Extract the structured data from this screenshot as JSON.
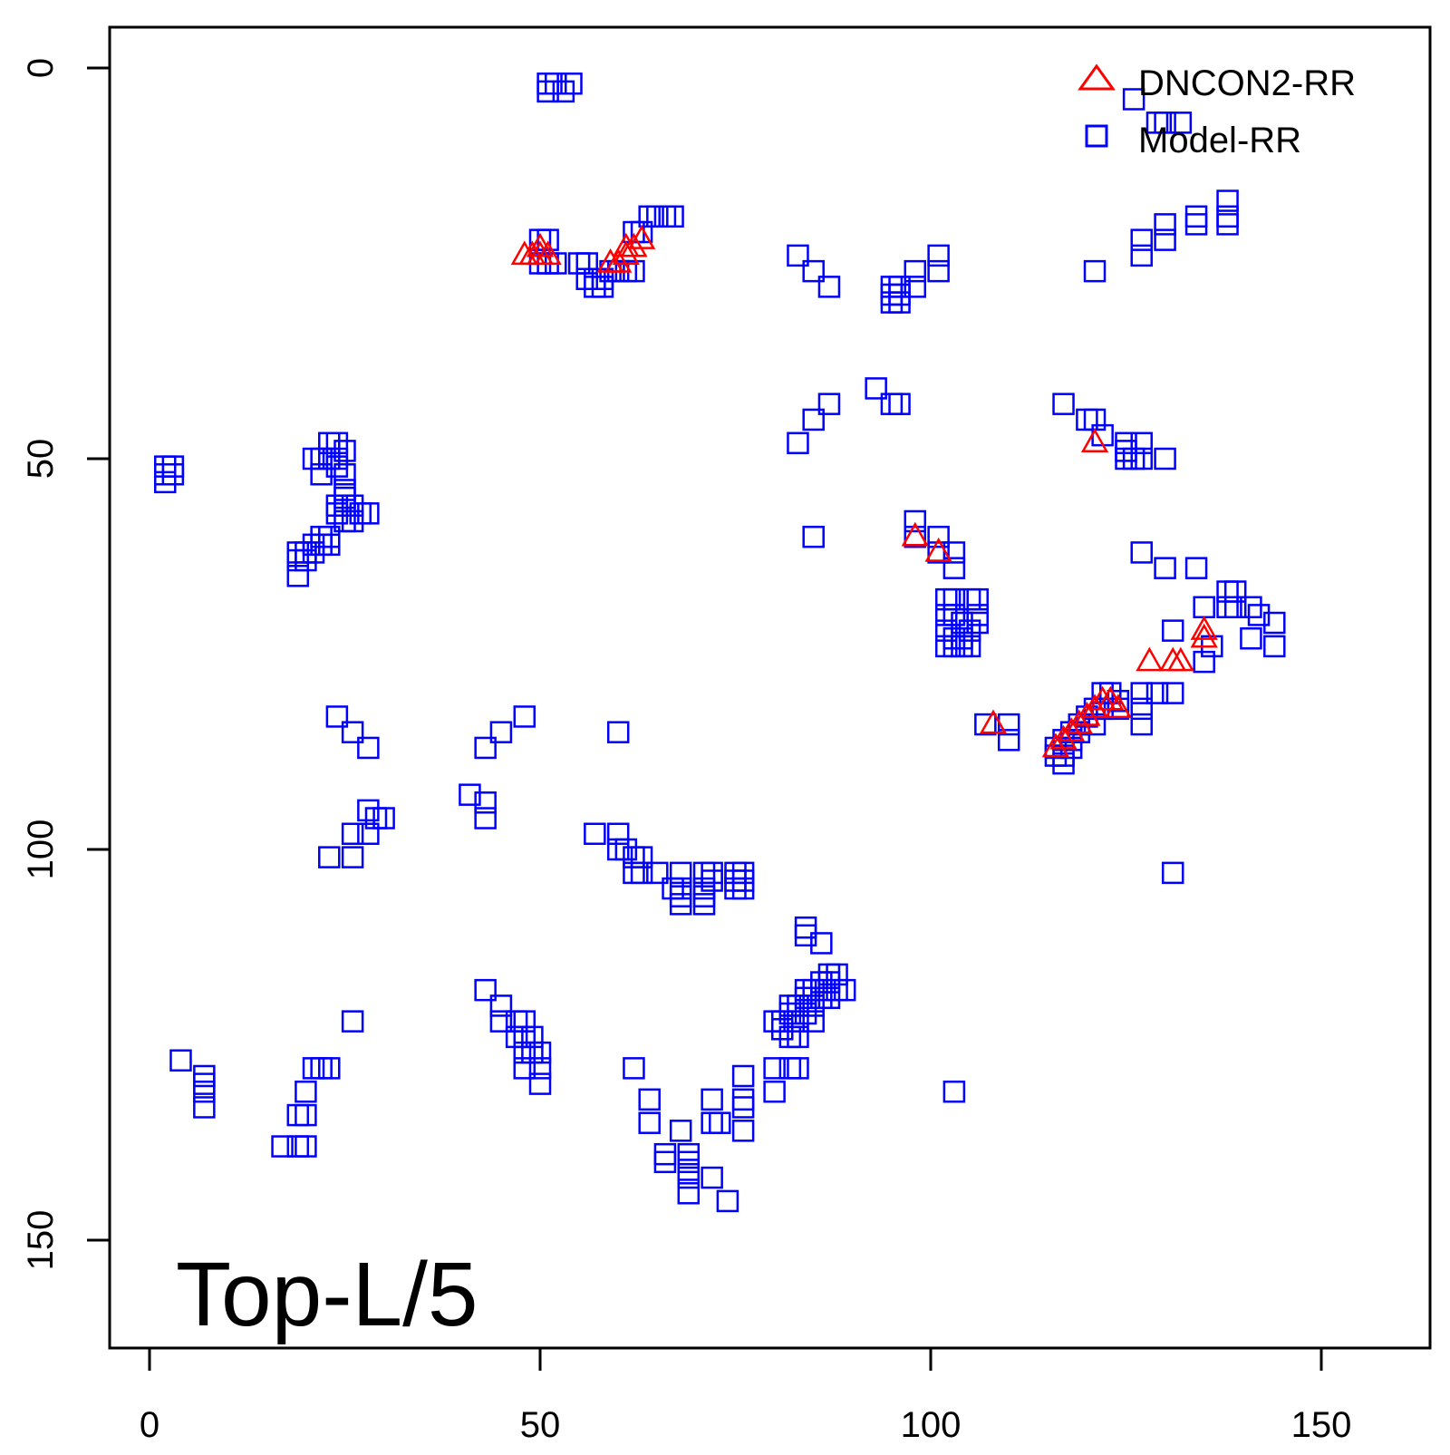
{
  "chart_data": {
    "type": "scatter",
    "title": "",
    "xlabel": "",
    "ylabel": "",
    "xlim": [
      -5,
      164
    ],
    "ylim": [
      -5,
      164
    ],
    "y_axis_inverted": true,
    "grid": false,
    "x_ticks": [
      "0",
      "50",
      "100",
      "150"
    ],
    "y_ticks": [
      "0",
      "50",
      "100",
      "150"
    ],
    "legend_position": "top-right",
    "panel_label": "Top-L/5",
    "series": [
      {
        "name": "DNCON2-RR",
        "marker": "triangle",
        "color": "#ff0000",
        "points": [
          [
            48,
            24
          ],
          [
            49,
            24
          ],
          [
            50,
            24
          ],
          [
            51,
            24
          ],
          [
            50,
            23
          ],
          [
            59,
            25
          ],
          [
            60,
            25
          ],
          [
            61,
            24
          ],
          [
            62,
            23
          ],
          [
            63,
            22
          ],
          [
            61,
            23
          ],
          [
            121,
            48
          ],
          [
            98,
            60
          ],
          [
            101,
            62
          ],
          [
            108,
            84
          ],
          [
            116,
            87
          ],
          [
            117,
            86
          ],
          [
            118,
            85
          ],
          [
            119,
            84
          ],
          [
            120,
            83
          ],
          [
            121,
            82
          ],
          [
            122,
            81
          ],
          [
            123,
            81
          ],
          [
            124,
            82
          ],
          [
            128,
            76
          ],
          [
            132,
            76
          ],
          [
            131,
            76
          ],
          [
            135,
            72
          ],
          [
            135,
            73
          ]
        ]
      },
      {
        "name": "Model-RR",
        "marker": "square",
        "color": "#0000ff",
        "points": [
          [
            2,
            51
          ],
          [
            2,
            52
          ],
          [
            2,
            53
          ],
          [
            3,
            51
          ],
          [
            3,
            52
          ],
          [
            4,
            127
          ],
          [
            7,
            129
          ],
          [
            7,
            130
          ],
          [
            7,
            131
          ],
          [
            7,
            133
          ],
          [
            17,
            138
          ],
          [
            19,
            134
          ],
          [
            19,
            138
          ],
          [
            20,
            134
          ],
          [
            20,
            138
          ],
          [
            19,
            62
          ],
          [
            19,
            63
          ],
          [
            19,
            65
          ],
          [
            20,
            62
          ],
          [
            20,
            63
          ],
          [
            21,
            61
          ],
          [
            21,
            62
          ],
          [
            22,
            60
          ],
          [
            22,
            61
          ],
          [
            23,
            60
          ],
          [
            23,
            61
          ],
          [
            21,
            50
          ],
          [
            22,
            50
          ],
          [
            22,
            52
          ],
          [
            23,
            48
          ],
          [
            23,
            50
          ],
          [
            24,
            48
          ],
          [
            24,
            50
          ],
          [
            24,
            51
          ],
          [
            25,
            49
          ],
          [
            25,
            52
          ],
          [
            25,
            54
          ],
          [
            24,
            56
          ],
          [
            24,
            57
          ],
          [
            25,
            55
          ],
          [
            25,
            56
          ],
          [
            25,
            58
          ],
          [
            26,
            56
          ],
          [
            26,
            58
          ],
          [
            27,
            57
          ],
          [
            28,
            57
          ],
          [
            20,
            131
          ],
          [
            21,
            128
          ],
          [
            22,
            128
          ],
          [
            23,
            128
          ],
          [
            26,
            122
          ],
          [
            24,
            83
          ],
          [
            26,
            85
          ],
          [
            28,
            87
          ],
          [
            23,
            101
          ],
          [
            26,
            101
          ],
          [
            26,
            98
          ],
          [
            28,
            98
          ],
          [
            28,
            95
          ],
          [
            29,
            96
          ],
          [
            30,
            96
          ],
          [
            41,
            93
          ],
          [
            43,
            94
          ],
          [
            43,
            96
          ],
          [
            43,
            87
          ],
          [
            45,
            85
          ],
          [
            48,
            83
          ],
          [
            43,
            118
          ],
          [
            45,
            120
          ],
          [
            45,
            122
          ],
          [
            47,
            122
          ],
          [
            48,
            122
          ],
          [
            47,
            124
          ],
          [
            48,
            124
          ],
          [
            49,
            124
          ],
          [
            48,
            126
          ],
          [
            49,
            126
          ],
          [
            50,
            126
          ],
          [
            48,
            128
          ],
          [
            50,
            128
          ],
          [
            50,
            130
          ],
          [
            50,
            22
          ],
          [
            51,
            22
          ],
          [
            50,
            25
          ],
          [
            51,
            25
          ],
          [
            52,
            25
          ],
          [
            55,
            25
          ],
          [
            56,
            25
          ],
          [
            56,
            27
          ],
          [
            57,
            27
          ],
          [
            58,
            27
          ],
          [
            57,
            28
          ],
          [
            58,
            28
          ],
          [
            51,
            2
          ],
          [
            51,
            3
          ],
          [
            52,
            2
          ],
          [
            53,
            3
          ],
          [
            54,
            2
          ],
          [
            59,
            26
          ],
          [
            60,
            26
          ],
          [
            61,
            26
          ],
          [
            62,
            26
          ],
          [
            62,
            21
          ],
          [
            63,
            21
          ],
          [
            64,
            19
          ],
          [
            65,
            19
          ],
          [
            66,
            19
          ],
          [
            67,
            19
          ],
          [
            60,
            85
          ],
          [
            57,
            98
          ],
          [
            60,
            98
          ],
          [
            60,
            100
          ],
          [
            61,
            100
          ],
          [
            62,
            101
          ],
          [
            63,
            101
          ],
          [
            62,
            103
          ],
          [
            63,
            103
          ],
          [
            65,
            103
          ],
          [
            67,
            105
          ],
          [
            68,
            103
          ],
          [
            68,
            105
          ],
          [
            68,
            106
          ],
          [
            68,
            107
          ],
          [
            71,
            103
          ],
          [
            71,
            105
          ],
          [
            71,
            106
          ],
          [
            71,
            107
          ],
          [
            72,
            103
          ],
          [
            72,
            104
          ],
          [
            75,
            103
          ],
          [
            75,
            104
          ],
          [
            75,
            105
          ],
          [
            76,
            103
          ],
          [
            76,
            104
          ],
          [
            76,
            105
          ],
          [
            62,
            128
          ],
          [
            64,
            132
          ],
          [
            64,
            135
          ],
          [
            68,
            136
          ],
          [
            66,
            139
          ],
          [
            66,
            140
          ],
          [
            69,
            139
          ],
          [
            69,
            140
          ],
          [
            69,
            141
          ],
          [
            69,
            142
          ],
          [
            69,
            144
          ],
          [
            72,
            132
          ],
          [
            72,
            135
          ],
          [
            73,
            135
          ],
          [
            72,
            142
          ],
          [
            74,
            145
          ],
          [
            76,
            129
          ],
          [
            76,
            132
          ],
          [
            76,
            133
          ],
          [
            76,
            136
          ],
          [
            80,
            131
          ],
          [
            80,
            128
          ],
          [
            82,
            128
          ],
          [
            83,
            128
          ],
          [
            80,
            122
          ],
          [
            81,
            122
          ],
          [
            81,
            123
          ],
          [
            82,
            120
          ],
          [
            82,
            121
          ],
          [
            82,
            124
          ],
          [
            83,
            120
          ],
          [
            83,
            122
          ],
          [
            83,
            124
          ],
          [
            84,
            118
          ],
          [
            84,
            119
          ],
          [
            84,
            121
          ],
          [
            85,
            118
          ],
          [
            85,
            120
          ],
          [
            85,
            122
          ],
          [
            86,
            117
          ],
          [
            86,
            118
          ],
          [
            86,
            119
          ],
          [
            87,
            116
          ],
          [
            87,
            117
          ],
          [
            87,
            119
          ],
          [
            88,
            116
          ],
          [
            88,
            118
          ],
          [
            89,
            118
          ],
          [
            84,
            110
          ],
          [
            84,
            111
          ],
          [
            86,
            112
          ],
          [
            83,
            24
          ],
          [
            85,
            26
          ],
          [
            87,
            28
          ],
          [
            83,
            48
          ],
          [
            85,
            45
          ],
          [
            87,
            43
          ],
          [
            85,
            60
          ],
          [
            93,
            41
          ],
          [
            95,
            43
          ],
          [
            96,
            43
          ],
          [
            95,
            28
          ],
          [
            95,
            29
          ],
          [
            95,
            30
          ],
          [
            96,
            28
          ],
          [
            96,
            29
          ],
          [
            96,
            30
          ],
          [
            98,
            28
          ],
          [
            98,
            26
          ],
          [
            101,
            24
          ],
          [
            101,
            26
          ],
          [
            98,
            58
          ],
          [
            98,
            60
          ],
          [
            101,
            60
          ],
          [
            101,
            62
          ],
          [
            103,
            62
          ],
          [
            103,
            64
          ],
          [
            102,
            68
          ],
          [
            102,
            70
          ],
          [
            103,
            68
          ],
          [
            103,
            70
          ],
          [
            103,
            73
          ],
          [
            104,
            71
          ],
          [
            104,
            73
          ],
          [
            105,
            72
          ],
          [
            105,
            68
          ],
          [
            106,
            68
          ],
          [
            106,
            70
          ],
          [
            102,
            72
          ],
          [
            102,
            74
          ],
          [
            103,
            74
          ],
          [
            104,
            74
          ],
          [
            105,
            74
          ],
          [
            106,
            71
          ],
          [
            107,
            84
          ],
          [
            110,
            84
          ],
          [
            110,
            86
          ],
          [
            116,
            87
          ],
          [
            116,
            88
          ],
          [
            117,
            86
          ],
          [
            117,
            88
          ],
          [
            117,
            89
          ],
          [
            118,
            85
          ],
          [
            118,
            86
          ],
          [
            118,
            87
          ],
          [
            119,
            84
          ],
          [
            119,
            85
          ],
          [
            120,
            83
          ],
          [
            121,
            82
          ],
          [
            121,
            84
          ],
          [
            122,
            80
          ],
          [
            122,
            82
          ],
          [
            123,
            80
          ],
          [
            124,
            81
          ],
          [
            124,
            82
          ],
          [
            117,
            43
          ],
          [
            120,
            45
          ],
          [
            121,
            45
          ],
          [
            122,
            47
          ],
          [
            125,
            48
          ],
          [
            125,
            49
          ],
          [
            125,
            50
          ],
          [
            126,
            50
          ],
          [
            127,
            50
          ],
          [
            127,
            48
          ],
          [
            130,
            50
          ],
          [
            121,
            26
          ],
          [
            126,
            4
          ],
          [
            127,
            22
          ],
          [
            127,
            24
          ],
          [
            129,
            7
          ],
          [
            130,
            7
          ],
          [
            130,
            20
          ],
          [
            130,
            22
          ],
          [
            132,
            7
          ],
          [
            134,
            19
          ],
          [
            134,
            20
          ],
          [
            138,
            17
          ],
          [
            138,
            19
          ],
          [
            138,
            20
          ],
          [
            127,
            62
          ],
          [
            130,
            64
          ],
          [
            134,
            64
          ],
          [
            131,
            72
          ],
          [
            135,
            69
          ],
          [
            136,
            74
          ],
          [
            138,
            67
          ],
          [
            138,
            69
          ],
          [
            139,
            67
          ],
          [
            139,
            69
          ],
          [
            141,
            69
          ],
          [
            142,
            70
          ],
          [
            141,
            73
          ],
          [
            144,
            71
          ],
          [
            144,
            74
          ],
          [
            127,
            80
          ],
          [
            127,
            82
          ],
          [
            127,
            84
          ],
          [
            129,
            80
          ],
          [
            131,
            80
          ],
          [
            131,
            103
          ],
          [
            135,
            76
          ],
          [
            103,
            131
          ]
        ]
      }
    ]
  }
}
